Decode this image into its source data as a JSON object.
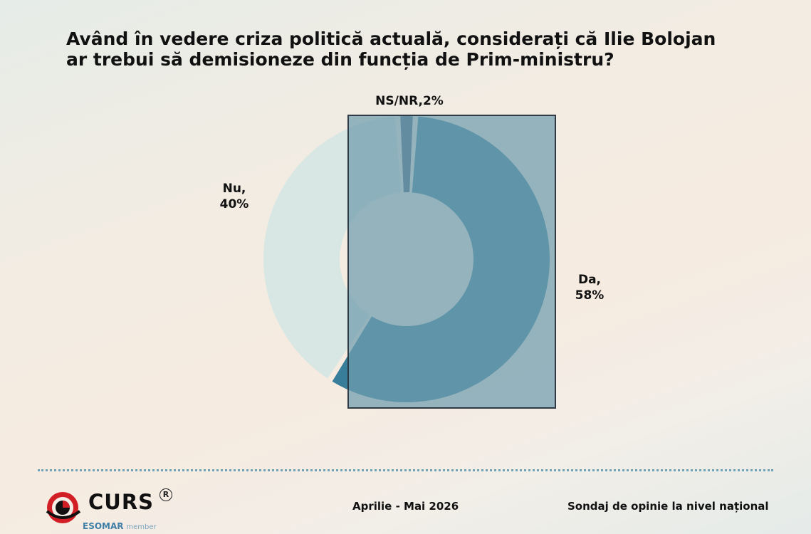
{
  "title_lines": [
    "Având în vedere criza politică actuală, considerați că Ilie Bolojan",
    "ar trebui să demisioneze din funcția de Prim-ministru?"
  ],
  "chart_data": {
    "type": "pie",
    "title": "Având în vedere criza politică actuală, considerați că Ilie Bolojan ar trebui să demisioneze din funcția de Prim-ministru?",
    "categories": [
      "Da",
      "Nu",
      "NS/NR"
    ],
    "values": [
      58,
      40,
      2
    ],
    "colors": [
      "#387d99",
      "#d8e7e3",
      "#45607f"
    ],
    "labels": {
      "da": {
        "name": "Da,",
        "value": "58%"
      },
      "nu": {
        "name": "Nu,",
        "value": "40%"
      },
      "nsnr": "NS/NR,2%"
    }
  },
  "colors": {
    "overlay": "#6f9cae",
    "divider": "#6fa3b5",
    "logo_red": "#d21f26"
  },
  "footer": {
    "logo_text": "CURS",
    "registered_mark": "R",
    "esomar": "ESOMAR",
    "esomar_member": "member",
    "period": "Aprilie - Mai 2026",
    "survey": "Sondaj de opinie la nivel național"
  }
}
